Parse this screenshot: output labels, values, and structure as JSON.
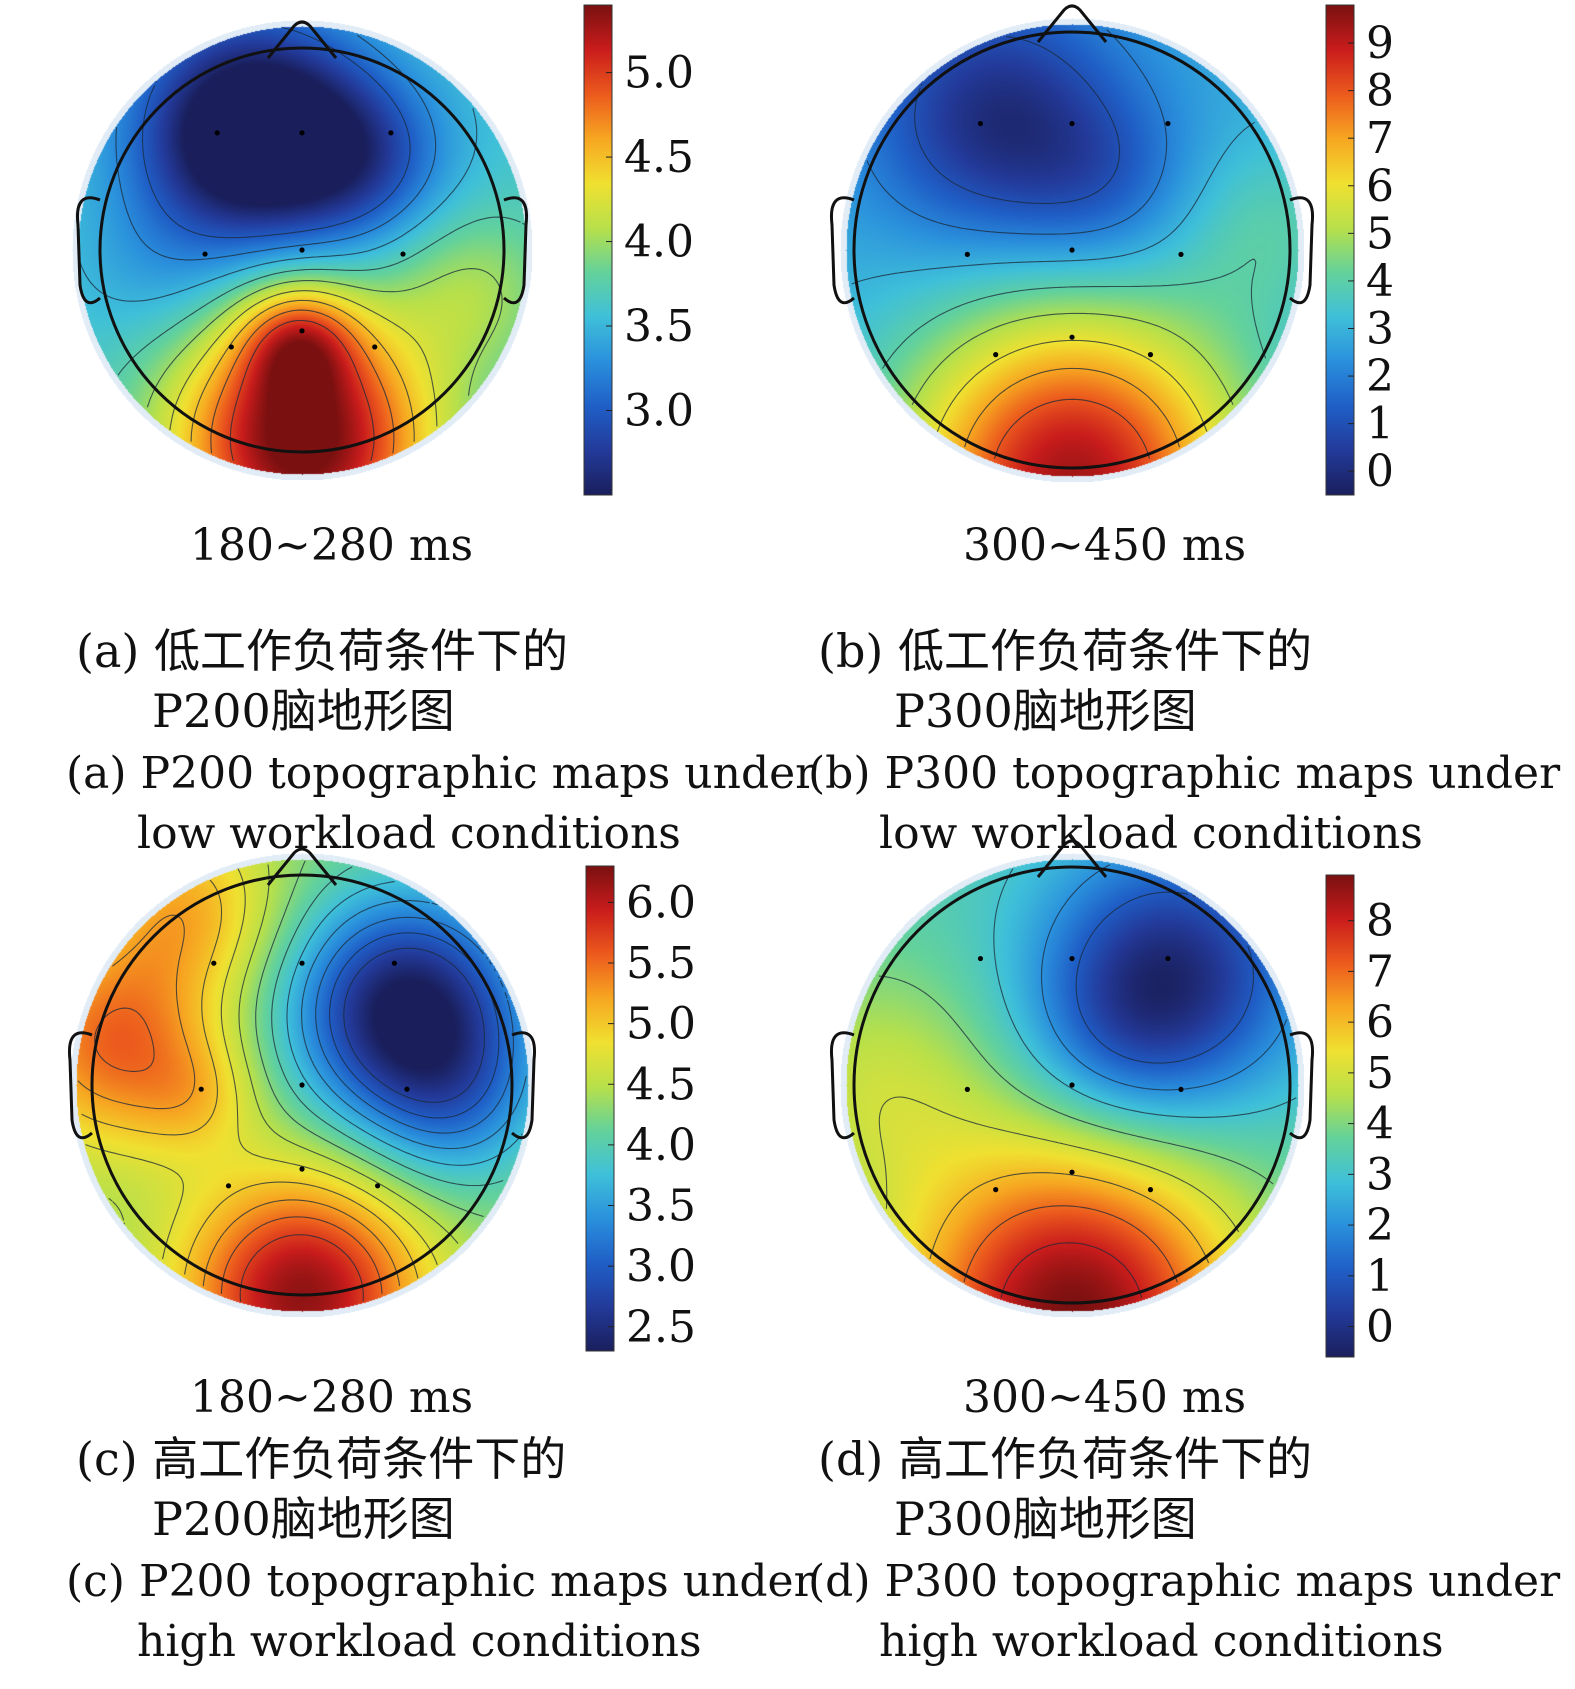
{
  "chart_data": [
    {
      "type": "heatmap",
      "subtype": "EEG scalp topographic map",
      "panel": "a",
      "time_window": "180~280 ms",
      "colorbar": {
        "ticks": [
          5.0,
          4.5,
          4.0,
          3.5,
          3.0
        ],
        "tick_labels": [
          "5.0",
          "4.5",
          "4.0",
          "3.5",
          "3.0"
        ],
        "range": [
          2.5,
          5.4
        ]
      },
      "field": {
        "base": 3.6,
        "blobs": [
          {
            "x": -0.25,
            "y": -0.58,
            "amp": -1.6,
            "sigma": 0.38
          },
          {
            "x": 0.3,
            "y": -0.45,
            "amp": -0.6,
            "sigma": 0.3
          },
          {
            "x": 0.0,
            "y": 0.95,
            "amp": 1.9,
            "sigma": 0.45
          },
          {
            "x": -0.02,
            "y": 0.45,
            "amp": 0.8,
            "sigma": 0.2
          },
          {
            "x": 0.85,
            "y": 0.2,
            "amp": 0.4,
            "sigma": 0.3
          },
          {
            "x": -0.7,
            "y": 0.1,
            "amp": -0.2,
            "sigma": 0.3
          }
        ],
        "contours": [
          3.0,
          3.25,
          3.5,
          3.75,
          4.0,
          4.25,
          4.5,
          4.75,
          5.0
        ]
      },
      "caption_zh": [
        "(a) 低工作负荷条件下的",
        "P200脑地形图"
      ],
      "caption_en": [
        "(a) P200 topographic maps under",
        "low workload conditions"
      ]
    },
    {
      "type": "heatmap",
      "subtype": "EEG scalp topographic map",
      "panel": "b",
      "time_window": "300~450 ms",
      "colorbar": {
        "ticks": [
          9,
          8,
          7,
          6,
          5,
          4,
          3,
          2,
          1,
          0
        ],
        "tick_labels": [
          "9",
          "8",
          "7",
          "6",
          "5",
          "4",
          "3",
          "2",
          "1",
          "0"
        ],
        "range": [
          -0.5,
          9.8
        ]
      },
      "field": {
        "base": 2.8,
        "blobs": [
          {
            "x": -0.35,
            "y": -0.6,
            "amp": -2.8,
            "sigma": 0.4
          },
          {
            "x": 0.15,
            "y": -0.3,
            "amp": -1.2,
            "sigma": 0.3
          },
          {
            "x": 0.0,
            "y": 1.05,
            "amp": 6.5,
            "sigma": 0.55
          },
          {
            "x": 0.9,
            "y": -0.1,
            "amp": 1.0,
            "sigma": 0.3
          }
        ],
        "contours": [
          1,
          2,
          3,
          4,
          5,
          6,
          7,
          8
        ]
      },
      "caption_zh": [
        "(b) 低工作负荷条件下的",
        "P300脑地形图"
      ],
      "caption_en": [
        "(b) P300 topographic maps under",
        "low workload conditions"
      ]
    },
    {
      "type": "heatmap",
      "subtype": "EEG scalp topographic map",
      "panel": "c",
      "time_window": "180~280 ms",
      "colorbar": {
        "ticks": [
          6.0,
          5.5,
          5.0,
          4.5,
          4.0,
          3.5,
          3.0,
          2.5
        ],
        "tick_labels": [
          "6.0",
          "5.5",
          "5.0",
          "4.5",
          "4.0",
          "3.5",
          "3.0",
          "2.5"
        ],
        "range": [
          2.3,
          6.3
        ]
      },
      "field": {
        "base": 4.3,
        "blobs": [
          {
            "x": 0.5,
            "y": -0.35,
            "amp": -2.1,
            "sigma": 0.38
          },
          {
            "x": 0.75,
            "y": 0.1,
            "amp": -0.6,
            "sigma": 0.3
          },
          {
            "x": -0.9,
            "y": -0.2,
            "amp": 1.2,
            "sigma": 0.35
          },
          {
            "x": -0.55,
            "y": -0.85,
            "amp": 0.8,
            "sigma": 0.3
          },
          {
            "x": 0.0,
            "y": 1.0,
            "amp": 1.9,
            "sigma": 0.4
          },
          {
            "x": -0.5,
            "y": 0.05,
            "amp": 0.4,
            "sigma": 0.2
          }
        ],
        "contours": [
          2.75,
          3.0,
          3.25,
          3.5,
          3.75,
          4.0,
          4.25,
          4.5,
          4.75,
          5.0,
          5.25,
          5.5,
          5.75
        ]
      },
      "caption_zh": [
        "(c) 高工作负荷条件下的",
        "P200脑地形图"
      ],
      "caption_en": [
        "(c) P200 topographic maps under",
        "high workload conditions"
      ]
    },
    {
      "type": "heatmap",
      "subtype": "EEG scalp topographic map",
      "panel": "d",
      "time_window": "300~450 ms",
      "colorbar": {
        "ticks": [
          8,
          7,
          6,
          5,
          4,
          3,
          2,
          1,
          0
        ],
        "tick_labels": [
          "8",
          "7",
          "6",
          "5",
          "4",
          "3",
          "2",
          "1",
          "0"
        ],
        "range": [
          -0.6,
          8.9
        ]
      },
      "field": {
        "base": 3.4,
        "blobs": [
          {
            "x": 0.45,
            "y": -0.5,
            "amp": -3.6,
            "sigma": 0.42
          },
          {
            "x": 0.2,
            "y": -0.2,
            "amp": -0.8,
            "sigma": 0.3
          },
          {
            "x": 0.0,
            "y": 1.05,
            "amp": 5.5,
            "sigma": 0.55
          },
          {
            "x": -0.9,
            "y": 0.0,
            "amp": 1.3,
            "sigma": 0.4
          }
        ],
        "contours": [
          1,
          2,
          3,
          4,
          5,
          6,
          7,
          8
        ]
      },
      "caption_zh": [
        "(d) 高工作负荷条件下的",
        "P300脑地形图"
      ],
      "caption_en": [
        "(d) P300 topographic maps under",
        "high workload conditions"
      ]
    }
  ],
  "colormap": [
    "#1a1f5c",
    "#233a9a",
    "#1f5fc7",
    "#2a90dc",
    "#3fc0d9",
    "#64d29a",
    "#b8e04a",
    "#f0e030",
    "#f7a621",
    "#ec5a1d",
    "#c91c1c",
    "#7a1010"
  ],
  "electrode_color": "#000000",
  "outline_color": "#111111"
}
